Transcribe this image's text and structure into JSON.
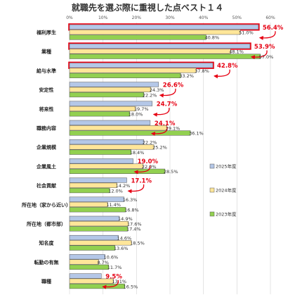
{
  "colors": {
    "series_2025": "#b4c7e7",
    "series_2024": "#ffe699",
    "series_2023": "#92d050",
    "highlight": "#e60012",
    "grid": "#d9d9d9",
    "bar_stroke": "#555555"
  },
  "chart_data": {
    "type": "bar",
    "orientation": "horizontal",
    "title": "就職先を選ぶ際に重視した点ベスト１４",
    "xlim": [
      0,
      60
    ],
    "x_ticks": [
      "0%",
      "10%",
      "20%",
      "30%",
      "40%",
      "50%",
      "60%"
    ],
    "grid": true,
    "legend_position": "right",
    "categories": [
      "福利厚生",
      "業種",
      "給与水準",
      "安定性",
      "将来性",
      "職務内容",
      "企業規模",
      "企業風土",
      "社会貢献",
      "所在地（家から近い）",
      "所在地（都市部）",
      "知名度",
      "転勤の有無",
      "職種"
    ],
    "series": [
      {
        "name": "2025年度",
        "values": [
          56.4,
          53.9,
          42.8,
          26.6,
          24.7,
          24.1,
          22.2,
          19.0,
          17.1,
          16.3,
          14.9,
          14.6,
          10.6,
          9.5
        ],
        "labels": [
          "56.4%",
          "53.9%",
          "42.8%",
          "26.6%",
          "24.7%",
          "24.1%",
          "22.2%",
          "19.0%",
          "17.1%",
          "16.3%",
          "14.9%",
          "14.6%",
          "10.6%",
          "9.5%"
        ],
        "highlighted": [
          true,
          true,
          true,
          true,
          true,
          true,
          false,
          true,
          true,
          false,
          false,
          false,
          false,
          true
        ]
      },
      {
        "name": "2024年度",
        "values": [
          51.0,
          48.1,
          37.8,
          24.3,
          19.7,
          29.1,
          25.2,
          22.0,
          14.2,
          11.4,
          17.6,
          18.5,
          8.7,
          13.1
        ],
        "labels": [
          "51.0%",
          "48.1%",
          "37.8%",
          "24.3%",
          "19.7%",
          "29.1%",
          "25.2%",
          "22.0%",
          "14.2%",
          "11.4%",
          "17.6%",
          "18.5%",
          "8.7%",
          "13.1%"
        ]
      },
      {
        "name": "2023年度",
        "values": [
          40.8,
          57.0,
          33.2,
          22.2,
          18.0,
          36.1,
          18.4,
          28.5,
          12.0,
          16.8,
          17.4,
          13.6,
          11.7,
          16.5
        ],
        "labels": [
          "40.8%",
          "57.0%",
          "33.2%",
          "22.2%",
          "18.0%",
          "36.1%",
          "18.4%",
          "28.5%",
          "12.0%",
          "16.8%",
          "17.4%",
          "13.6%",
          "11.7%",
          "16.5%"
        ]
      }
    ]
  }
}
